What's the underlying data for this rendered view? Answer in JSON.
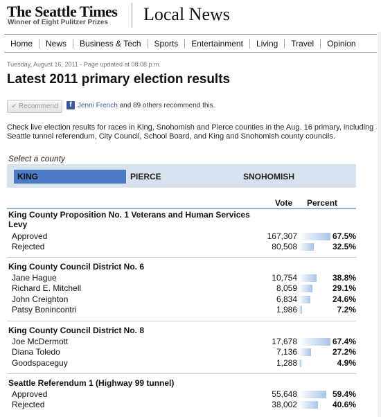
{
  "masthead": {
    "logo": "The Seattle Times",
    "tagline": "Winner of Eight Pulitzer Prizes",
    "section_title": "Local News"
  },
  "nav": {
    "items": [
      "Home",
      "News",
      "Business & Tech",
      "Sports",
      "Entertainment",
      "Living",
      "Travel",
      "Opinion"
    ]
  },
  "article": {
    "dateline": "Tuesday, August 16, 2011 - Page updated at 08:08 p.m.",
    "headline": "Latest 2011 primary election results",
    "recommend_label": "Recommend",
    "fb_name": "Jenni French",
    "fb_rest": " and 89 others recommend this.",
    "intro": "Check live election results for races in King, Snohomish and Pierce counties in the Aug. 16 primary, including Seattle tunnel referendum, City Council, School Board, and King and Snohomish county councils."
  },
  "county_select": {
    "label": "Select a county",
    "tabs": [
      "KING",
      "PIERCE",
      "SNOHOMISH"
    ],
    "active": "KING"
  },
  "results": {
    "col_vote": "Vote",
    "col_percent": "Percent",
    "races": [
      {
        "title": "King County Proposition No. 1 Veterans and Human Services Levy",
        "candidates": [
          {
            "name": "Approved",
            "votes": "167,307",
            "percent": "67.5%",
            "share": 67.5
          },
          {
            "name": "Rejected",
            "votes": "80,508",
            "percent": "32.5%",
            "share": 32.5
          }
        ]
      },
      {
        "title": "King County Council District No. 6",
        "candidates": [
          {
            "name": "Jane Hague",
            "votes": "10,754",
            "percent": "38.8%",
            "share": 38.8
          },
          {
            "name": "Richard E. Mitchell",
            "votes": "8,059",
            "percent": "29.1%",
            "share": 29.1
          },
          {
            "name": "John Creighton",
            "votes": "6,834",
            "percent": "24.6%",
            "share": 24.6
          },
          {
            "name": "Patsy Bonincontri",
            "votes": "1,986",
            "percent": "7.2%",
            "share": 7.2
          }
        ]
      },
      {
        "title": "King County Council District No. 8",
        "candidates": [
          {
            "name": "Joe McDermott",
            "votes": "17,678",
            "percent": "67.4%",
            "share": 67.4
          },
          {
            "name": "Diana Toledo",
            "votes": "7,136",
            "percent": "27.2%",
            "share": 27.2
          },
          {
            "name": "Goodspaceguy",
            "votes": "1,288",
            "percent": "4.9%",
            "share": 4.9
          }
        ]
      },
      {
        "title": "Seattle Referendum 1 (Highway 99 tunnel)",
        "candidates": [
          {
            "name": "Approved",
            "votes": "55,648",
            "percent": "59.4%",
            "share": 59.4
          },
          {
            "name": "Rejected",
            "votes": "38,002",
            "percent": "40.6%",
            "share": 40.6
          }
        ]
      }
    ]
  }
}
